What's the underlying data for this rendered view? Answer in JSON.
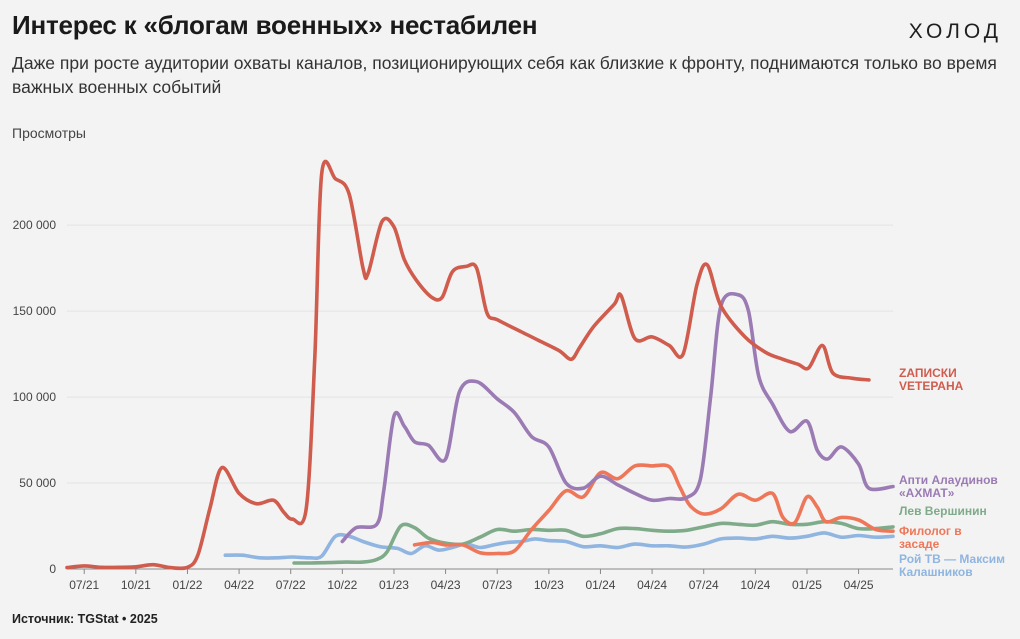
{
  "header": {
    "title": "Интерес к «блогам военных» нестабилен",
    "logo": "ХОЛОД",
    "subtitle": "Даже при росте аудитории охваты каналов, позиционирующих себя как близкие к фронту, поднимаются только во время важных военных событий",
    "source": "Источник: TGStat • 2025"
  },
  "chart_data": {
    "type": "line",
    "title": "Интерес к «блогам военных» нестабилен",
    "xlabel": "",
    "ylabel": "Просмотры",
    "ylim": [
      0,
      235000
    ],
    "xlim": [
      0,
      48
    ],
    "x_unit": "months since 2021-06",
    "yticks": [
      {
        "value": 0,
        "label": "0"
      },
      {
        "value": 50000,
        "label": "50 000"
      },
      {
        "value": 100000,
        "label": "100 000"
      },
      {
        "value": 150000,
        "label": "150 000"
      },
      {
        "value": 200000,
        "label": "200 000"
      }
    ],
    "xticks": [
      {
        "x": 1,
        "label": "07/21"
      },
      {
        "x": 4,
        "label": "10/21"
      },
      {
        "x": 7,
        "label": "01/22"
      },
      {
        "x": 10,
        "label": "04/22"
      },
      {
        "x": 13,
        "label": "07/22"
      },
      {
        "x": 16,
        "label": "10/22"
      },
      {
        "x": 19,
        "label": "01/23"
      },
      {
        "x": 22,
        "label": "04/23"
      },
      {
        "x": 25,
        "label": "07/23"
      },
      {
        "x": 28,
        "label": "10/23"
      },
      {
        "x": 31,
        "label": "01/24"
      },
      {
        "x": 34,
        "label": "04/24"
      },
      {
        "x": 37,
        "label": "07/24"
      },
      {
        "x": 40,
        "label": "10/24"
      },
      {
        "x": 43,
        "label": "01/25"
      },
      {
        "x": 46,
        "label": "04/25"
      }
    ],
    "grid": true,
    "series": [
      {
        "name": "Рой ТВ — Максим Калашников",
        "label_lines": [
          "Рой ТВ — Максим",
          "Калашников"
        ],
        "color": "#8fb5e0",
        "points": [
          [
            9.2,
            8000
          ],
          [
            10.2,
            8000
          ],
          [
            11.2,
            6500
          ],
          [
            12.2,
            6500
          ],
          [
            13.1,
            7000
          ],
          [
            14.1,
            6500
          ],
          [
            14.8,
            7500
          ],
          [
            15.6,
            19000
          ],
          [
            16.4,
            19000
          ],
          [
            17.2,
            16000
          ],
          [
            18.2,
            13000
          ],
          [
            19.2,
            12000
          ],
          [
            20,
            9000
          ],
          [
            20.8,
            13500
          ],
          [
            21.6,
            11000
          ],
          [
            22.4,
            12500
          ],
          [
            23.2,
            14500
          ],
          [
            24,
            12500
          ],
          [
            24.8,
            14000
          ],
          [
            25.6,
            15500
          ],
          [
            26.4,
            16000
          ],
          [
            27.2,
            17500
          ],
          [
            28,
            16500
          ],
          [
            29,
            16000
          ],
          [
            30,
            13000
          ],
          [
            31,
            13500
          ],
          [
            32,
            12500
          ],
          [
            33,
            14500
          ],
          [
            34,
            13500
          ],
          [
            35,
            13500
          ],
          [
            36,
            12800
          ],
          [
            37,
            14500
          ],
          [
            38,
            17500
          ],
          [
            39,
            18000
          ],
          [
            40,
            17500
          ],
          [
            41,
            19000
          ],
          [
            42,
            18000
          ],
          [
            43,
            19000
          ],
          [
            44,
            21000
          ],
          [
            45,
            18500
          ],
          [
            46,
            19500
          ],
          [
            47,
            18500
          ],
          [
            48,
            19000
          ]
        ]
      },
      {
        "name": "Лев Вершинин",
        "label_lines": [
          "Лев Вершинин"
        ],
        "color": "#7fab8a",
        "points": [
          [
            13.2,
            3500
          ],
          [
            14.2,
            3500
          ],
          [
            15.2,
            3700
          ],
          [
            16.2,
            4000
          ],
          [
            17.2,
            4000
          ],
          [
            18,
            5500
          ],
          [
            18.6,
            10000
          ],
          [
            19.4,
            25000
          ],
          [
            20.2,
            24000
          ],
          [
            21,
            18000
          ],
          [
            22,
            15000
          ],
          [
            23,
            14500
          ],
          [
            24,
            18500
          ],
          [
            25,
            23000
          ],
          [
            26,
            22000
          ],
          [
            27,
            23000
          ],
          [
            28,
            22500
          ],
          [
            29,
            22500
          ],
          [
            30,
            19000
          ],
          [
            31,
            20500
          ],
          [
            32,
            23500
          ],
          [
            33,
            23500
          ],
          [
            34,
            22500
          ],
          [
            35,
            22000
          ],
          [
            36,
            22500
          ],
          [
            37,
            24500
          ],
          [
            38,
            26500
          ],
          [
            39,
            26000
          ],
          [
            40,
            25500
          ],
          [
            41,
            27500
          ],
          [
            42,
            26000
          ],
          [
            43,
            26000
          ],
          [
            44,
            27500
          ],
          [
            45,
            26500
          ],
          [
            46,
            23500
          ],
          [
            47,
            23500
          ],
          [
            48,
            24500
          ]
        ]
      },
      {
        "name": "Филолог в засаде",
        "label_lines": [
          "Филолог в",
          "засаде"
        ],
        "color": "#ee7759",
        "points": [
          [
            20.2,
            14000
          ],
          [
            21.2,
            15500
          ],
          [
            22,
            14000
          ],
          [
            23,
            14000
          ],
          [
            24,
            9500
          ],
          [
            25,
            9000
          ],
          [
            26,
            10500
          ],
          [
            27,
            23000
          ],
          [
            28,
            34000
          ],
          [
            29,
            45500
          ],
          [
            30,
            42000
          ],
          [
            31,
            56000
          ],
          [
            32,
            52500
          ],
          [
            33,
            60000
          ],
          [
            34,
            60000
          ],
          [
            35,
            59500
          ],
          [
            35.6,
            48000
          ],
          [
            36.2,
            37000
          ],
          [
            37,
            32000
          ],
          [
            38,
            35000
          ],
          [
            39,
            43500
          ],
          [
            40,
            40000
          ],
          [
            41,
            44000
          ],
          [
            41.6,
            30000
          ],
          [
            42.3,
            27000
          ],
          [
            43,
            42000
          ],
          [
            43.6,
            36000
          ],
          [
            44.1,
            27500
          ],
          [
            45,
            30000
          ],
          [
            46,
            28500
          ],
          [
            47,
            23000
          ],
          [
            48,
            22000
          ]
        ]
      },
      {
        "name": "Апти Алаудинов «АХМАТ»",
        "label_lines": [
          "Апти Алаудинов",
          "«АХМАТ»"
        ],
        "color": "#9b7bb4",
        "points": [
          [
            16,
            16000
          ],
          [
            16.8,
            24000
          ],
          [
            18,
            26000
          ],
          [
            18.4,
            45000
          ],
          [
            19,
            89000
          ],
          [
            19.6,
            83000
          ],
          [
            20.2,
            74000
          ],
          [
            21,
            72000
          ],
          [
            22,
            64000
          ],
          [
            22.8,
            103000
          ],
          [
            23.8,
            109000
          ],
          [
            25,
            99000
          ],
          [
            26,
            91000
          ],
          [
            27,
            77000
          ],
          [
            28,
            71000
          ],
          [
            29,
            50000
          ],
          [
            30,
            47000
          ],
          [
            31,
            54000
          ],
          [
            32,
            49000
          ],
          [
            33,
            44000
          ],
          [
            34,
            40000
          ],
          [
            35,
            41000
          ],
          [
            36,
            41500
          ],
          [
            36.8,
            52000
          ],
          [
            37.4,
            100000
          ],
          [
            38,
            153000
          ],
          [
            39,
            159500
          ],
          [
            39.6,
            150000
          ],
          [
            40.2,
            112000
          ],
          [
            41,
            96000
          ],
          [
            42,
            80000
          ],
          [
            43,
            86000
          ],
          [
            43.6,
            69000
          ],
          [
            44.2,
            64000
          ],
          [
            45,
            71000
          ],
          [
            46,
            61000
          ],
          [
            46.6,
            47000
          ],
          [
            48,
            48000
          ]
        ]
      },
      {
        "name": "Zаписки Vетерана",
        "label_lines": [
          "ZАПИСКИ",
          "VЕТЕРАНА"
        ],
        "color": "#d05c4d",
        "points": [
          [
            0,
            800
          ],
          [
            1,
            1800
          ],
          [
            2,
            1000
          ],
          [
            3,
            1000
          ],
          [
            4,
            1300
          ],
          [
            5,
            2500
          ],
          [
            6,
            800
          ],
          [
            7,
            1000
          ],
          [
            7.6,
            8000
          ],
          [
            8.3,
            35000
          ],
          [
            9,
            59000
          ],
          [
            10,
            44000
          ],
          [
            11,
            38000
          ],
          [
            12,
            40000
          ],
          [
            12.6,
            33000
          ],
          [
            13.1,
            29000
          ],
          [
            13.9,
            35000
          ],
          [
            14.4,
            123000
          ],
          [
            14.8,
            230000
          ],
          [
            15.6,
            227000
          ],
          [
            16.4,
            218000
          ],
          [
            17.2,
            175000
          ],
          [
            17.5,
            172000
          ],
          [
            18.3,
            202000
          ],
          [
            19,
            199000
          ],
          [
            19.6,
            180000
          ],
          [
            20.3,
            168000
          ],
          [
            21.2,
            158000
          ],
          [
            21.8,
            158000
          ],
          [
            22.4,
            173000
          ],
          [
            23.2,
            176000
          ],
          [
            23.8,
            175000
          ],
          [
            24.4,
            149000
          ],
          [
            25,
            145000
          ],
          [
            26.4,
            138000
          ],
          [
            27.4,
            133000
          ],
          [
            28.6,
            127000
          ],
          [
            29.3,
            122000
          ],
          [
            29.8,
            129000
          ],
          [
            30.6,
            141000
          ],
          [
            31.8,
            154000
          ],
          [
            32.2,
            159000
          ],
          [
            33,
            134000
          ],
          [
            34,
            135000
          ],
          [
            35,
            130000
          ],
          [
            35.8,
            125000
          ],
          [
            36.6,
            165000
          ],
          [
            37.2,
            177000
          ],
          [
            38,
            153000
          ],
          [
            39.4,
            135000
          ],
          [
            40.6,
            126000
          ],
          [
            41.6,
            122000
          ],
          [
            42.5,
            119000
          ],
          [
            43.1,
            117000
          ],
          [
            43.9,
            130000
          ],
          [
            44.5,
            114000
          ],
          [
            45.6,
            111000
          ],
          [
            46.6,
            110000
          ]
        ]
      }
    ]
  }
}
